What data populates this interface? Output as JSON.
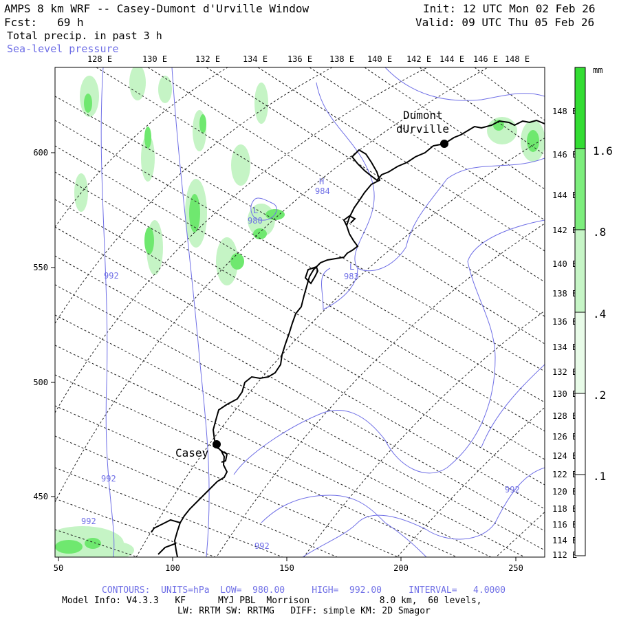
{
  "header": {
    "title": "AMPS 8 km WRF -- Casey-Dumont d'Urville Window",
    "init": "Init: 12 UTC Mon 02 Feb 26",
    "fcst": "Fcst:   69 h",
    "valid": "Valid: 09 UTC Thu 05 Feb 26",
    "field1": "Total precip. in past 3 h",
    "field2": "Sea-level pressure"
  },
  "map": {
    "top_longitudes": [
      "128 E",
      "130 E",
      "132 E",
      "134 E",
      "136 E",
      "138 E",
      "140 E",
      "142 E",
      "144 E",
      "146 E",
      "148 E"
    ],
    "right_longitudes": [
      "148 E",
      "146 E",
      "144 E",
      "142 E",
      "140 E",
      "138 E",
      "136 E",
      "134 E",
      "132 E",
      "130 E",
      "128 E",
      "126 E",
      "124 E",
      "122 E",
      "120 E",
      "118 E",
      "116 E",
      "114 E",
      "112 E"
    ],
    "y_ticks": [
      "600",
      "550",
      "500",
      "450"
    ],
    "x_ticks": [
      "50",
      "100",
      "150",
      "200",
      "250"
    ],
    "stations": [
      {
        "name": "Casey",
        "label": "Casey"
      },
      {
        "name": "Dumont d'Urville",
        "line1": "Dumont",
        "line2": "dUrville"
      }
    ],
    "pressure_labels": [
      "992",
      "992",
      "992",
      "992",
      "992"
    ],
    "highs": [
      {
        "letter": "H",
        "value": "984"
      }
    ],
    "lows": [
      {
        "letter": "L",
        "value": "980"
      },
      {
        "letter": "L",
        "value": "983"
      }
    ]
  },
  "legend": {
    "unit": "mm",
    "levels": [
      ".1",
      ".2",
      ".4",
      ".8",
      "1.6"
    ],
    "colors": [
      "#ffffff",
      "#e8fbe8",
      "#c6f5c6",
      "#7dee7d",
      "#33dd33"
    ]
  },
  "footer": {
    "contours": "CONTOURS:  UNITS=hPa  LOW=  980.00     HIGH=  992.00     INTERVAL=   4.0000",
    "model_info": "Model Info: V4.3.3   KF      MYJ PBL  Morrison             8.0 km,  60 levels,",
    "physics": "LW: RRTM SW: RRTMG   DIFF: simple KM: 2D Smagor"
  }
}
